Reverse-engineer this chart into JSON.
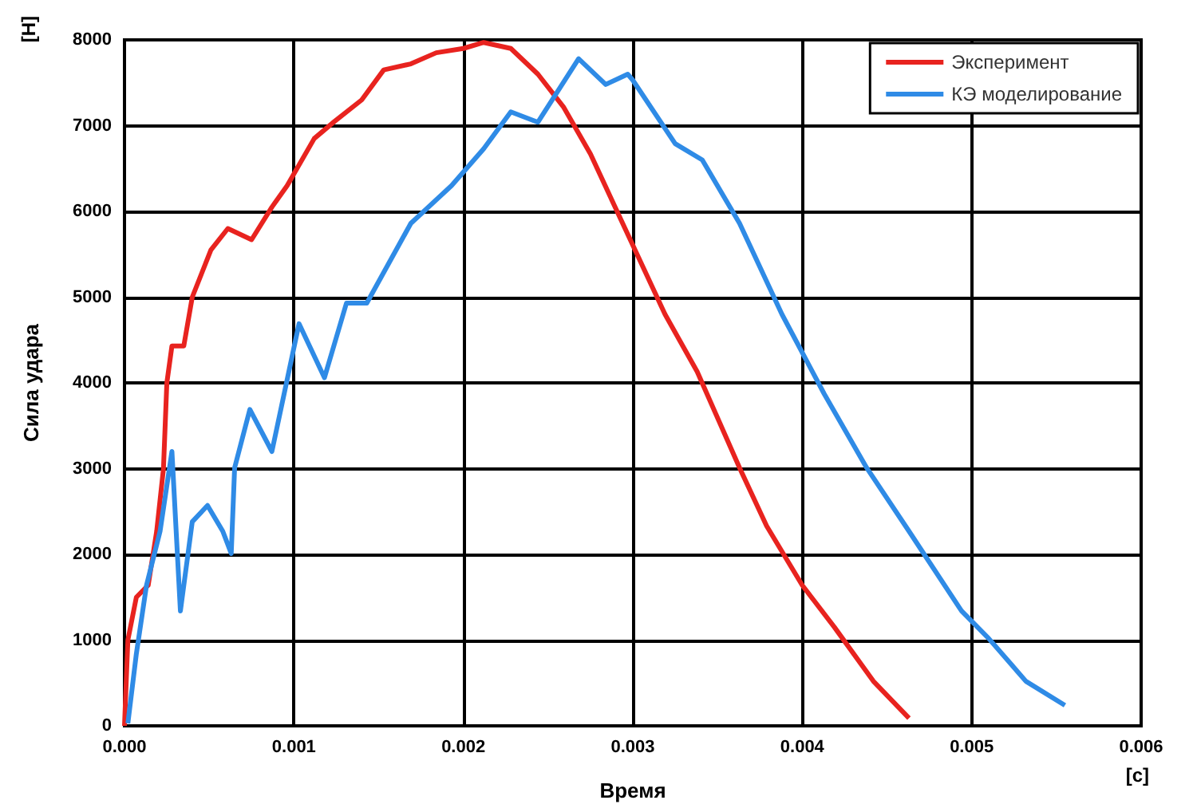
{
  "chart_data": {
    "type": "line",
    "xlabel": "Время",
    "ylabel": "Сила удара",
    "annotations": [
      "[Н]",
      "[с]"
    ],
    "xlim": [
      0,
      0.006
    ],
    "ylim": [
      0,
      8000
    ],
    "xticks": [
      {
        "value": 0,
        "label": "0.000"
      },
      {
        "value": 0.001,
        "label": "0.001"
      },
      {
        "value": 0.002,
        "label": "0.002"
      },
      {
        "value": 0.003,
        "label": "0.003"
      },
      {
        "value": 0.004,
        "label": "0.004"
      },
      {
        "value": 0.005,
        "label": "0.005"
      },
      {
        "value": 0.006,
        "label": "0.006"
      }
    ],
    "yticks": [
      0,
      1000,
      2000,
      3000,
      4000,
      5000,
      6000,
      7000,
      8000
    ],
    "grid": true,
    "legend": "top right",
    "marker": "none",
    "line_style": "solid",
    "series": [
      {
        "name": "Эксперимент",
        "color": "#e8231f",
        "x": [
          0,
          2e-05,
          7e-05,
          0.00014,
          0.00019,
          0.00023,
          0.00025,
          0.00028,
          0.00035,
          0.0004,
          0.00051,
          0.00061,
          0.00075,
          0.00087,
          0.00096,
          0.00112,
          0.00124,
          0.0014,
          0.00153,
          0.00169,
          0.00184,
          0.002,
          0.00212,
          0.00228,
          0.00244,
          0.00259,
          0.00275,
          0.00294,
          0.00319,
          0.00338,
          0.00363,
          0.00379,
          0.004,
          0.00419,
          0.00442,
          0.00463
        ],
        "values": [
          0,
          1000,
          1500,
          1640,
          2270,
          3000,
          4000,
          4430,
          4430,
          5000,
          5550,
          5800,
          5670,
          6050,
          6300,
          6850,
          7050,
          7300,
          7650,
          7720,
          7850,
          7900,
          7970,
          7900,
          7600,
          7220,
          6670,
          5860,
          4800,
          4130,
          3010,
          2330,
          1640,
          1150,
          520,
          90
        ]
      },
      {
        "name": "КЭ моделирование",
        "color": "#2f8be6",
        "x": [
          2e-05,
          7e-05,
          0.00013,
          0.00021,
          0.00028,
          0.00033,
          0.0004,
          0.00049,
          0.00058,
          0.00063,
          0.00065,
          0.00074,
          0.00087,
          0.00103,
          0.00118,
          0.00131,
          0.00143,
          0.00169,
          0.00193,
          0.00212,
          0.00228,
          0.00244,
          0.00256,
          0.00268,
          0.00284,
          0.00297,
          0.003,
          0.00325,
          0.00341,
          0.00363,
          0.00388,
          0.00413,
          0.00438,
          0.00463,
          0.00494,
          0.0051,
          0.00532,
          0.00555
        ],
        "values": [
          30,
          840,
          1640,
          2270,
          3200,
          1340,
          2380,
          2570,
          2270,
          2010,
          3010,
          3690,
          3200,
          4690,
          4060,
          4930,
          4930,
          5860,
          6300,
          6730,
          7160,
          7040,
          7410,
          7780,
          7480,
          7600,
          7530,
          6790,
          6600,
          5860,
          4800,
          3870,
          3010,
          2270,
          1340,
          1020,
          520,
          240
        ]
      }
    ]
  }
}
